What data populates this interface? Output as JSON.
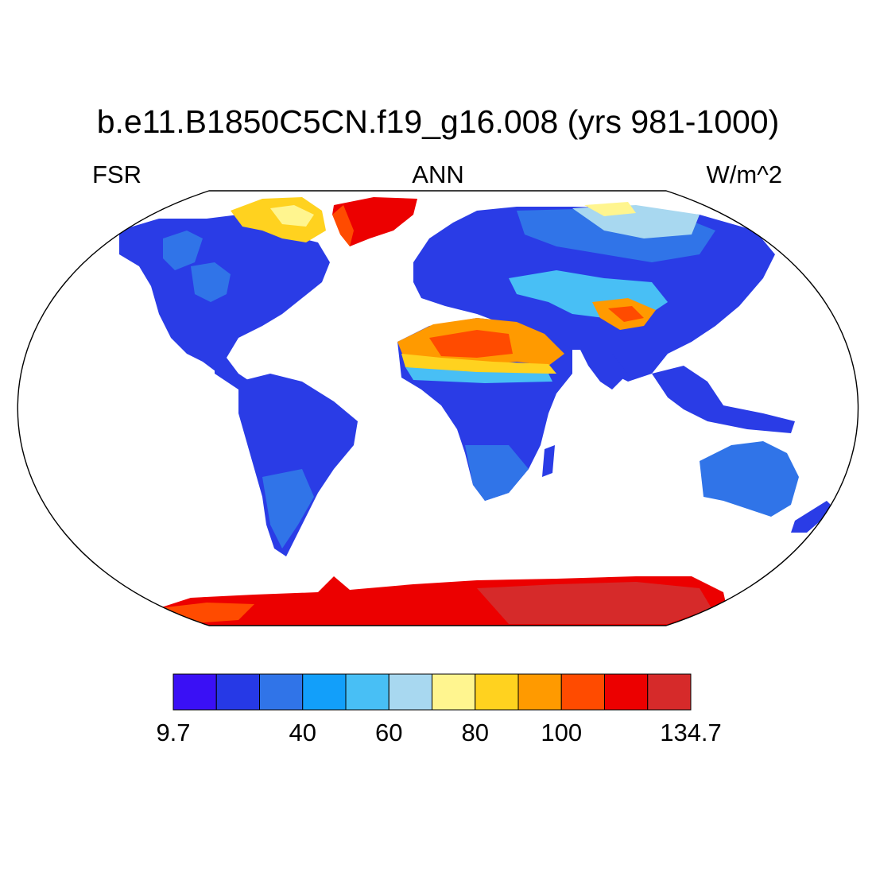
{
  "title": "b.e11.B1850C5CN.f19_g16.008 (yrs 981-1000)",
  "left_string": "FSR",
  "center_string": "ANN",
  "right_string": "W/m^2",
  "projection": "robinson",
  "colorbar": {
    "colors": [
      "#3a10f5",
      "#2639e6",
      "#3074e8",
      "#129ffa",
      "#48bff5",
      "#a8d8f0",
      "#fff58f",
      "#ffd21f",
      "#ff9a00",
      "#ff4b00",
      "#ec0000",
      "#d62a2a"
    ],
    "min": 9.7,
    "max": 134.7,
    "tick_labels": [
      "9.7",
      "40",
      "60",
      "80",
      "100",
      "134.7"
    ]
  }
}
